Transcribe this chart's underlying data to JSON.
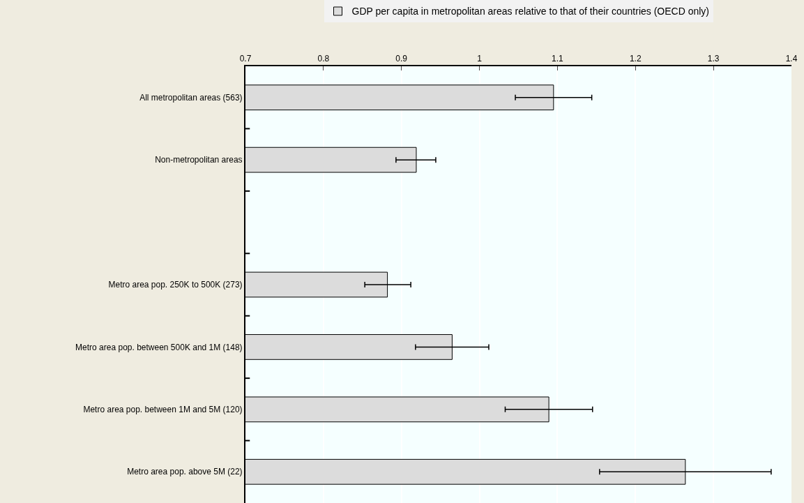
{
  "chart_data": {
    "type": "bar",
    "orientation": "horizontal",
    "categories": [
      "All metropolitan areas (563)",
      "Non-metropolitan areas",
      null,
      "Metro area pop. 250K to 500K (273)",
      "Metro area pop. between 500K and 1M (148)",
      "Metro area pop. between 1M and 5M (120)",
      "Metro area pop. above 5M (22)"
    ],
    "series": [
      {
        "name": "GDP per capita in metropolitan areas relative to that of their countries (OECD only)",
        "color": "#dcdcdc",
        "values": [
          1.095,
          0.919,
          null,
          0.882,
          0.965,
          1.089,
          1.264
        ],
        "errors": [
          [
            1.046,
            1.144
          ],
          [
            0.893,
            0.944
          ],
          null,
          [
            0.853,
            0.912
          ],
          [
            0.918,
            1.012
          ],
          [
            1.033,
            1.145
          ],
          [
            1.154,
            1.374
          ]
        ]
      }
    ],
    "xlim": [
      0.7,
      1.4
    ],
    "xticks": [
      0.7,
      0.8,
      0.9,
      1,
      1.1,
      1.2,
      1.3,
      1.4
    ],
    "grid": "x",
    "legend": "top"
  }
}
